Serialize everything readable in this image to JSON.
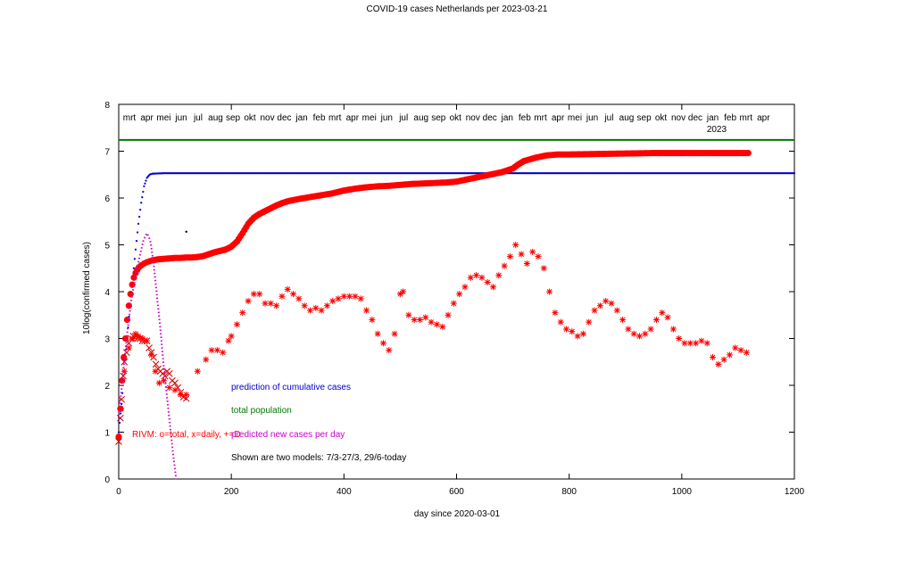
{
  "chart_data": {
    "type": "scatter",
    "title": "COVID-19 cases Netherlands per 2023-03-21",
    "xlabel": "day since 2020-03-01",
    "ylabel": "10log(confirmed cases)",
    "xlim": [
      0,
      1200
    ],
    "ylim": [
      0,
      8
    ],
    "x_ticks": [
      0,
      200,
      400,
      600,
      800,
      1000,
      1200
    ],
    "y_ticks": [
      0,
      1,
      2,
      3,
      4,
      5,
      6,
      7,
      8
    ],
    "grid": false,
    "legend_placement": "lower-left inside plot",
    "month_labels": [
      {
        "label": "mrt",
        "day": 0
      },
      {
        "label": "apr",
        "day": 31
      },
      {
        "label": "mei",
        "day": 61
      },
      {
        "label": "jun",
        "day": 92
      },
      {
        "label": "jul",
        "day": 122
      },
      {
        "label": "aug",
        "day": 153
      },
      {
        "label": "sep",
        "day": 184
      },
      {
        "label": "okt",
        "day": 214
      },
      {
        "label": "nov",
        "day": 245
      },
      {
        "label": "dec",
        "day": 275
      },
      {
        "label": "jan",
        "day": 306
      },
      {
        "label": "feb",
        "day": 337
      },
      {
        "label": "mrt",
        "day": 365
      },
      {
        "label": "apr",
        "day": 396
      },
      {
        "label": "mei",
        "day": 426
      },
      {
        "label": "jun",
        "day": 457
      },
      {
        "label": "jul",
        "day": 487
      },
      {
        "label": "aug",
        "day": 518
      },
      {
        "label": "sep",
        "day": 549
      },
      {
        "label": "okt",
        "day": 579
      },
      {
        "label": "nov",
        "day": 610
      },
      {
        "label": "dec",
        "day": 640
      },
      {
        "label": "jan",
        "day": 671
      },
      {
        "label": "feb",
        "day": 702
      },
      {
        "label": "mrt",
        "day": 730
      },
      {
        "label": "apr",
        "day": 761
      },
      {
        "label": "mei",
        "day": 791
      },
      {
        "label": "jun",
        "day": 822
      },
      {
        "label": "jul",
        "day": 852
      },
      {
        "label": "aug",
        "day": 883
      },
      {
        "label": "sep",
        "day": 914
      },
      {
        "label": "okt",
        "day": 944
      },
      {
        "label": "nov",
        "day": 975
      },
      {
        "label": "dec",
        "day": 1005
      },
      {
        "label": "jan",
        "day": 1036
      },
      {
        "label": "feb",
        "day": 1067
      },
      {
        "label": "mrt",
        "day": 1095
      },
      {
        "label": "apr",
        "day": 1126
      }
    ],
    "year_label": {
      "text": "2023",
      "day": 1062
    },
    "annotations": [
      {
        "text": "prediction of cumulative cases",
        "color": "#0000cc"
      },
      {
        "text": "total population",
        "color": "#007700"
      },
      {
        "text": "RIVM: o=total, x=daily, +=D",
        "color": "#ff0000"
      },
      {
        "text": "predicted new cases per day",
        "color": "#cc00cc"
      },
      {
        "text": "Shown are two models: 7/3-27/3, 29/6-today",
        "color": "#000000"
      }
    ],
    "colors": {
      "prediction": "#0000cc",
      "population": "#007700",
      "rivm": "#ff0000",
      "predicted_daily": "#cc00cc"
    },
    "population_level": 7.24,
    "stray_point": {
      "x": 120,
      "y": 5.28
    },
    "series": [
      {
        "style": "dots",
        "color": "#0000cc",
        "points": [
          [
            0,
            1.0
          ],
          [
            5,
            1.6
          ],
          [
            10,
            2.3
          ],
          [
            15,
            3.0
          ],
          [
            20,
            3.7
          ],
          [
            25,
            4.3
          ],
          [
            30,
            4.9
          ],
          [
            35,
            5.45
          ],
          [
            40,
            5.9
          ],
          [
            45,
            6.25
          ],
          [
            50,
            6.43
          ],
          [
            55,
            6.5
          ],
          [
            60,
            6.52
          ],
          [
            80,
            6.53
          ],
          [
            200,
            6.53
          ],
          [
            400,
            6.53
          ],
          [
            600,
            6.53
          ],
          [
            800,
            6.53
          ],
          [
            1000,
            6.53
          ],
          [
            1200,
            6.53
          ]
        ]
      },
      {
        "style": "filled-circles",
        "color": "#ff0000",
        "points": [
          [
            0,
            0.9
          ],
          [
            3,
            1.5
          ],
          [
            6,
            2.1
          ],
          [
            9,
            2.6
          ],
          [
            12,
            3.0
          ],
          [
            15,
            3.4
          ],
          [
            18,
            3.7
          ],
          [
            21,
            3.95
          ],
          [
            24,
            4.15
          ],
          [
            27,
            4.3
          ],
          [
            30,
            4.4
          ],
          [
            33,
            4.47
          ],
          [
            36,
            4.52
          ],
          [
            40,
            4.56
          ],
          [
            45,
            4.6
          ],
          [
            50,
            4.63
          ],
          [
            55,
            4.65
          ],
          [
            60,
            4.67
          ],
          [
            70,
            4.69
          ],
          [
            80,
            4.7
          ],
          [
            90,
            4.71
          ],
          [
            100,
            4.72
          ],
          [
            110,
            4.72
          ],
          [
            120,
            4.73
          ],
          [
            130,
            4.73
          ],
          [
            140,
            4.74
          ],
          [
            150,
            4.76
          ],
          [
            160,
            4.8
          ],
          [
            170,
            4.84
          ],
          [
            180,
            4.87
          ],
          [
            190,
            4.9
          ],
          [
            200,
            4.96
          ],
          [
            210,
            5.07
          ],
          [
            220,
            5.25
          ],
          [
            230,
            5.45
          ],
          [
            240,
            5.58
          ],
          [
            250,
            5.66
          ],
          [
            260,
            5.72
          ],
          [
            270,
            5.78
          ],
          [
            280,
            5.84
          ],
          [
            290,
            5.89
          ],
          [
            300,
            5.93
          ],
          [
            320,
            5.98
          ],
          [
            340,
            6.02
          ],
          [
            360,
            6.06
          ],
          [
            380,
            6.1
          ],
          [
            400,
            6.16
          ],
          [
            420,
            6.2
          ],
          [
            440,
            6.23
          ],
          [
            460,
            6.25
          ],
          [
            480,
            6.26
          ],
          [
            500,
            6.28
          ],
          [
            520,
            6.3
          ],
          [
            540,
            6.31
          ],
          [
            560,
            6.32
          ],
          [
            580,
            6.33
          ],
          [
            600,
            6.35
          ],
          [
            620,
            6.4
          ],
          [
            640,
            6.45
          ],
          [
            660,
            6.5
          ],
          [
            680,
            6.55
          ],
          [
            700,
            6.63
          ],
          [
            710,
            6.72
          ],
          [
            720,
            6.79
          ],
          [
            740,
            6.86
          ],
          [
            760,
            6.91
          ],
          [
            780,
            6.93
          ],
          [
            800,
            6.93
          ],
          [
            850,
            6.94
          ],
          [
            900,
            6.95
          ],
          [
            950,
            6.96
          ],
          [
            1000,
            6.96
          ],
          [
            1050,
            6.96
          ],
          [
            1100,
            6.96
          ],
          [
            1118,
            6.96
          ]
        ]
      },
      {
        "style": "crosses",
        "color": "#cc0000",
        "points": [
          [
            0,
            0.8
          ],
          [
            3,
            1.3
          ],
          [
            5,
            1.7
          ],
          [
            8,
            2.2
          ],
          [
            10,
            2.5
          ],
          [
            14,
            2.7
          ],
          [
            18,
            2.9
          ],
          [
            22,
            3.0
          ],
          [
            26,
            3.05
          ],
          [
            30,
            3.05
          ],
          [
            34,
            3.0
          ],
          [
            38,
            3.0
          ],
          [
            42,
            2.95
          ],
          [
            46,
            2.95
          ],
          [
            50,
            2.95
          ],
          [
            54,
            2.8
          ],
          [
            58,
            2.7
          ],
          [
            62,
            2.6
          ],
          [
            66,
            2.45
          ],
          [
            70,
            2.35
          ],
          [
            74,
            2.3
          ],
          [
            78,
            2.25
          ],
          [
            82,
            2.2
          ],
          [
            86,
            2.3
          ],
          [
            90,
            2.25
          ],
          [
            95,
            2.1
          ],
          [
            100,
            2.05
          ],
          [
            105,
            1.95
          ],
          [
            110,
            1.85
          ],
          [
            115,
            1.75
          ],
          [
            120,
            1.72
          ]
        ]
      },
      {
        "style": "stars",
        "color": "#ff0000",
        "points": [
          [
            4,
            1.5
          ],
          [
            10,
            2.3
          ],
          [
            18,
            2.8
          ],
          [
            25,
            3.0
          ],
          [
            30,
            3.1
          ],
          [
            35,
            3.05
          ],
          [
            42,
            3.0
          ],
          [
            50,
            2.95
          ],
          [
            58,
            2.65
          ],
          [
            65,
            2.3
          ],
          [
            72,
            2.05
          ],
          [
            80,
            2.1
          ],
          [
            90,
            1.95
          ],
          [
            100,
            1.9
          ],
          [
            110,
            1.8
          ],
          [
            120,
            1.8
          ],
          [
            140,
            2.3
          ],
          [
            155,
            2.55
          ],
          [
            165,
            2.75
          ],
          [
            175,
            2.75
          ],
          [
            185,
            2.7
          ],
          [
            195,
            2.95
          ],
          [
            200,
            3.05
          ],
          [
            210,
            3.3
          ],
          [
            220,
            3.55
          ],
          [
            230,
            3.8
          ],
          [
            240,
            3.95
          ],
          [
            250,
            3.95
          ],
          [
            260,
            3.75
          ],
          [
            270,
            3.75
          ],
          [
            280,
            3.7
          ],
          [
            290,
            3.9
          ],
          [
            300,
            4.05
          ],
          [
            310,
            3.95
          ],
          [
            320,
            3.85
          ],
          [
            330,
            3.7
          ],
          [
            340,
            3.6
          ],
          [
            350,
            3.65
          ],
          [
            360,
            3.6
          ],
          [
            370,
            3.7
          ],
          [
            380,
            3.8
          ],
          [
            390,
            3.85
          ],
          [
            400,
            3.9
          ],
          [
            410,
            3.9
          ],
          [
            420,
            3.9
          ],
          [
            430,
            3.85
          ],
          [
            440,
            3.6
          ],
          [
            450,
            3.4
          ],
          [
            460,
            3.1
          ],
          [
            470,
            2.9
          ],
          [
            480,
            2.75
          ],
          [
            490,
            3.1
          ],
          [
            500,
            3.95
          ],
          [
            505,
            4.0
          ],
          [
            515,
            3.5
          ],
          [
            525,
            3.4
          ],
          [
            535,
            3.4
          ],
          [
            545,
            3.45
          ],
          [
            555,
            3.35
          ],
          [
            565,
            3.3
          ],
          [
            575,
            3.25
          ],
          [
            585,
            3.5
          ],
          [
            595,
            3.75
          ],
          [
            605,
            3.95
          ],
          [
            615,
            4.1
          ],
          [
            625,
            4.3
          ],
          [
            635,
            4.35
          ],
          [
            645,
            4.3
          ],
          [
            655,
            4.2
          ],
          [
            665,
            4.1
          ],
          [
            675,
            4.35
          ],
          [
            685,
            4.55
          ],
          [
            695,
            4.75
          ],
          [
            705,
            5.0
          ],
          [
            715,
            4.8
          ],
          [
            725,
            4.6
          ],
          [
            735,
            4.85
          ],
          [
            745,
            4.75
          ],
          [
            755,
            4.5
          ],
          [
            765,
            4.0
          ],
          [
            775,
            3.55
          ],
          [
            785,
            3.35
          ],
          [
            795,
            3.2
          ],
          [
            805,
            3.15
          ],
          [
            815,
            3.05
          ],
          [
            825,
            3.1
          ],
          [
            835,
            3.35
          ],
          [
            845,
            3.6
          ],
          [
            855,
            3.7
          ],
          [
            865,
            3.8
          ],
          [
            875,
            3.75
          ],
          [
            885,
            3.6
          ],
          [
            895,
            3.4
          ],
          [
            905,
            3.2
          ],
          [
            915,
            3.1
          ],
          [
            925,
            3.05
          ],
          [
            935,
            3.1
          ],
          [
            945,
            3.2
          ],
          [
            955,
            3.4
          ],
          [
            965,
            3.55
          ],
          [
            975,
            3.45
          ],
          [
            985,
            3.2
          ],
          [
            995,
            3.0
          ],
          [
            1005,
            2.9
          ],
          [
            1015,
            2.9
          ],
          [
            1025,
            2.9
          ],
          [
            1035,
            2.95
          ],
          [
            1045,
            2.9
          ],
          [
            1055,
            2.6
          ],
          [
            1065,
            2.45
          ],
          [
            1075,
            2.55
          ],
          [
            1085,
            2.65
          ],
          [
            1095,
            2.8
          ],
          [
            1105,
            2.75
          ],
          [
            1115,
            2.7
          ]
        ]
      },
      {
        "style": "dotted-line",
        "color": "#cc00cc",
        "points": [
          [
            0,
            1.3
          ],
          [
            8,
            2.3
          ],
          [
            15,
            3.1
          ],
          [
            22,
            3.8
          ],
          [
            30,
            4.35
          ],
          [
            38,
            4.8
          ],
          [
            44,
            5.1
          ],
          [
            50,
            5.25
          ],
          [
            56,
            5.1
          ],
          [
            62,
            4.6
          ],
          [
            68,
            3.9
          ],
          [
            74,
            3.2
          ],
          [
            80,
            2.4
          ],
          [
            88,
            1.5
          ],
          [
            96,
            0.6
          ],
          [
            102,
            0.0
          ]
        ]
      }
    ]
  }
}
